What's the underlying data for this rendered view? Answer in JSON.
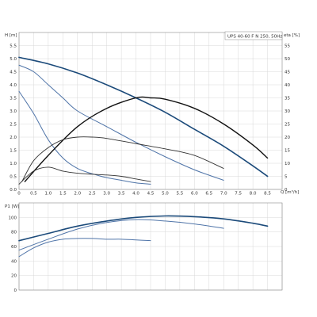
{
  "chart_data": [
    {
      "type": "line",
      "title": "UPS 40-60 F N 250, 50Hz",
      "xlabel": "Q [m³/h]",
      "ylabel_left": "H [m]",
      "ylabel_right": "eta [%]",
      "xlim": [
        0,
        9.0
      ],
      "ylim_left": [
        0,
        6.0
      ],
      "ylim_right": [
        0,
        60
      ],
      "grid": true,
      "x_ticks": [
        "0",
        "0.5",
        "1.0",
        "1.5",
        "2.0",
        "2.5",
        "3.0",
        "3.5",
        "4.0",
        "4.5",
        "5.0",
        "5.5",
        "6.0",
        "6.5",
        "7.0",
        "7.5",
        "8.0",
        "8.5"
      ],
      "y_left_ticks": [
        "0.0",
        "0.5",
        "1.0",
        "1.5",
        "2.0",
        "2.5",
        "3.0",
        "3.5",
        "4.0",
        "4.5",
        "5.0",
        "5.5"
      ],
      "y_right_ticks": [
        "0",
        "5",
        "10",
        "15",
        "20",
        "25",
        "30",
        "35",
        "40",
        "45",
        "50",
        "55"
      ],
      "series": [
        {
          "axis": "left",
          "color": "#1b4a7a",
          "width": 1.6,
          "x": [
            0,
            1,
            2,
            3,
            4,
            5,
            6,
            7,
            8,
            8.5
          ],
          "y": [
            5.05,
            4.8,
            4.45,
            4.0,
            3.5,
            2.95,
            2.3,
            1.65,
            0.9,
            0.5
          ]
        },
        {
          "axis": "left",
          "color": "#4f74a8",
          "width": 1.0,
          "x": [
            0,
            0.5,
            1,
            1.5,
            2,
            3,
            4,
            5,
            6,
            7
          ],
          "y": [
            4.75,
            4.5,
            4.0,
            3.5,
            3.0,
            2.4,
            1.8,
            1.25,
            0.75,
            0.35
          ]
        },
        {
          "axis": "left",
          "color": "#4f74a8",
          "width": 1.0,
          "x": [
            0,
            0.5,
            1,
            1.5,
            2,
            2.5,
            3,
            3.5,
            4,
            4.5
          ],
          "y": [
            3.75,
            2.9,
            1.9,
            1.2,
            0.8,
            0.6,
            0.45,
            0.35,
            0.25,
            0.2
          ]
        },
        {
          "axis": "right",
          "color": "#111111",
          "width": 1.4,
          "x": [
            0.2,
            1,
            2,
            3,
            4,
            4.5,
            5,
            6,
            7,
            8,
            8.5
          ],
          "y": [
            3,
            13,
            24,
            31,
            35,
            35,
            34.5,
            31,
            25,
            17,
            12
          ]
        },
        {
          "axis": "right",
          "color": "#333333",
          "width": 0.9,
          "x": [
            0.1,
            0.5,
            1,
            1.5,
            2,
            2.5,
            3,
            4,
            5,
            6,
            7
          ],
          "y": [
            3,
            11,
            16,
            19,
            20,
            20,
            19.5,
            17.5,
            15.5,
            13,
            8
          ]
        },
        {
          "axis": "right",
          "color": "#333333",
          "width": 0.9,
          "x": [
            0,
            0.5,
            1,
            1.5,
            2,
            2.5,
            3,
            3.5,
            4,
            4.5
          ],
          "y": [
            2,
            7,
            8.5,
            7,
            6.2,
            5.8,
            5.5,
            5,
            4,
            3
          ]
        }
      ]
    },
    {
      "type": "line",
      "ylabel": "P1 [W]",
      "xlim": [
        0,
        9.0
      ],
      "ylim": [
        0,
        120
      ],
      "grid": true,
      "y_ticks": [
        "0",
        "20",
        "40",
        "60",
        "80",
        "100"
      ],
      "series": [
        {
          "color": "#1b4a7a",
          "width": 1.6,
          "x": [
            0,
            1,
            2,
            3,
            4,
            5,
            6,
            7,
            8,
            8.5
          ],
          "y": [
            68,
            78,
            88,
            95,
            100,
            102,
            101,
            98,
            92,
            88
          ]
        },
        {
          "color": "#4f74a8",
          "width": 1.0,
          "x": [
            0,
            1,
            2,
            3,
            4,
            5,
            6,
            7
          ],
          "y": [
            55,
            70,
            84,
            93,
            97,
            95,
            91,
            85
          ]
        },
        {
          "color": "#4f74a8",
          "width": 1.0,
          "x": [
            0,
            0.5,
            1,
            1.5,
            2,
            2.5,
            3,
            3.5,
            4,
            4.5
          ],
          "y": [
            46,
            58,
            66,
            70,
            71,
            71,
            70,
            70,
            69,
            68
          ]
        }
      ]
    }
  ]
}
